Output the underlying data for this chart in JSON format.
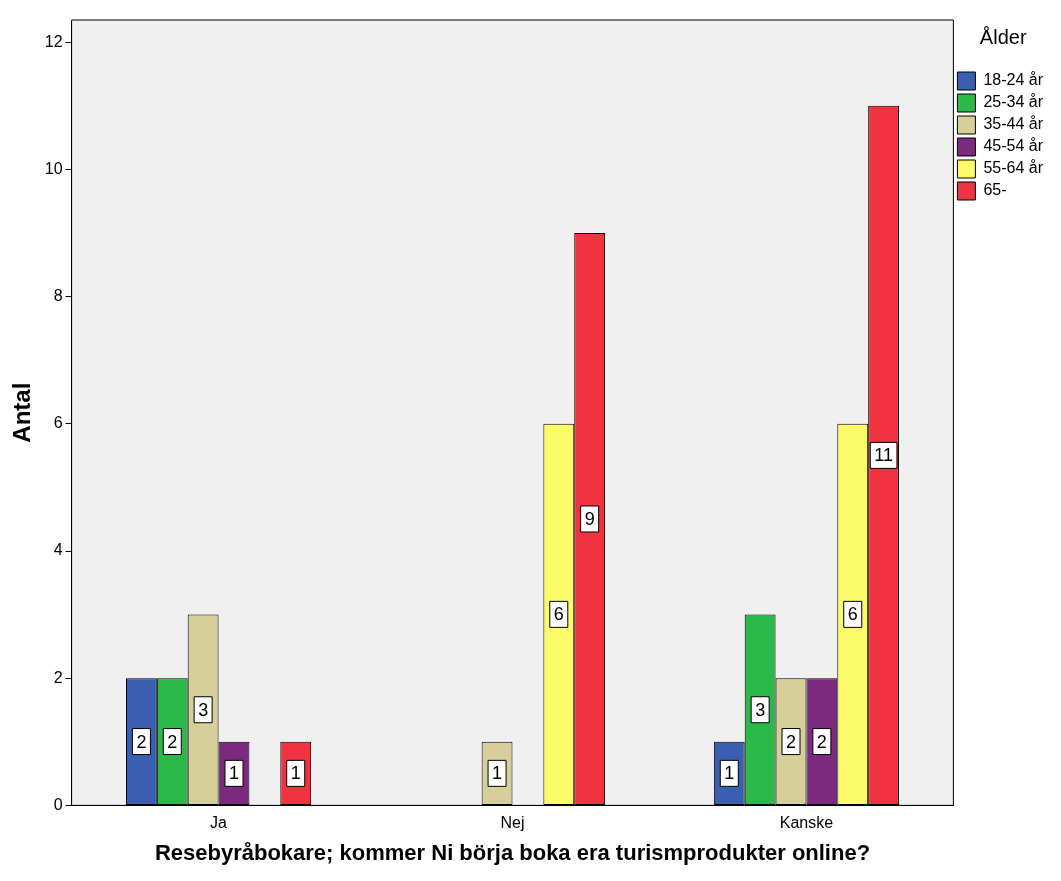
{
  "chart_data": {
    "type": "bar",
    "xlabel": "Resebyråbokare; kommer Ni börja boka era turismprodukter online?",
    "ylabel": "Antal",
    "legend_title": "Ålder",
    "categories": [
      "Ja",
      "Nej",
      "Kanske"
    ],
    "series": [
      {
        "name": "18-24 år",
        "color": "#3a5fb0",
        "values": [
          2,
          null,
          1
        ]
      },
      {
        "name": "25-34 år",
        "color": "#2db84a",
        "values": [
          2,
          null,
          3
        ]
      },
      {
        "name": "35-44 år",
        "color": "#d6cf9a",
        "values": [
          3,
          1,
          2
        ]
      },
      {
        "name": "45-54 år",
        "color": "#7b2a7f",
        "values": [
          1,
          null,
          2
        ]
      },
      {
        "name": "55-64 år",
        "color": "#fbfb6a",
        "values": [
          null,
          6,
          6
        ]
      },
      {
        "name": "65-",
        "color": "#ef3340",
        "values": [
          1,
          9,
          11
        ]
      }
    ],
    "ylim": [
      0,
      12.35
    ],
    "yticks": [
      0,
      2,
      4,
      6,
      8,
      10,
      12
    ],
    "grid": false,
    "legend": "top right",
    "data_labels": true
  }
}
